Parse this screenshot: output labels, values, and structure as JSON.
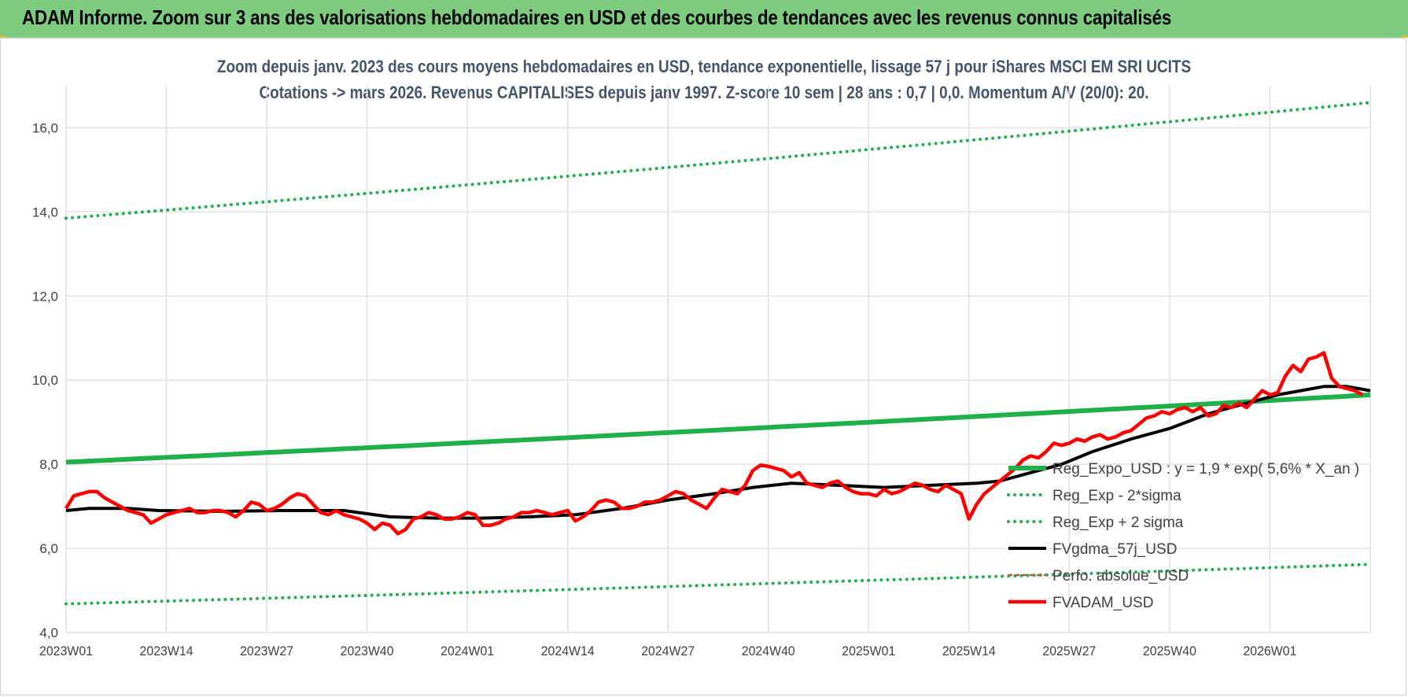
{
  "header": {
    "title": "ADAM Informe. Zoom sur 3 ans des valorisations hebdomadaires en USD et des courbes de tendances avec les revenus connus capitalisés"
  },
  "chart_data": {
    "type": "line",
    "title_line1": "Zoom depuis janv. 2023 des cours moyens hebdomadaires en USD, tendance exponentielle, lissage 57 j pour iShares MSCI EM SRI UCITS",
    "title_line2": "Cotations -> mars 2026. Revenus CAPITALISES depuis janv 1997. Z-score 10 sem | 28 ans : 0,7 | 0,0. Momentum A/V (20/0): 20.",
    "xlabel": "",
    "ylabel": "",
    "ylim": [
      4.0,
      17.0
    ],
    "yticks": [
      4.0,
      6.0,
      8.0,
      10.0,
      12.0,
      14.0,
      16.0
    ],
    "ytick_labels": [
      "4,0",
      "6,0",
      "8,0",
      "10,0",
      "12,0",
      "14,0",
      "16,0"
    ],
    "xlim": [
      0,
      169
    ],
    "xticks": [
      0,
      13,
      26,
      39,
      52,
      65,
      78,
      91,
      104,
      117,
      130,
      143,
      156
    ],
    "xtick_labels": [
      "2023W01",
      "2023W14",
      "2023W27",
      "2023W40",
      "2024W01",
      "2024W14",
      "2024W27",
      "2024W40",
      "2025W01",
      "2025W14",
      "2025W27",
      "2025W40",
      "2026W01"
    ],
    "grid": true,
    "legend_position": "bottom-right",
    "colors": {
      "green": "#1fb04a",
      "black": "#000000",
      "red": "#ff0000",
      "grid": "#e0e0e0",
      "text": "#404040"
    },
    "series": [
      {
        "name": "Reg_Expo_USD : y = 1,9 * exp( 5,6% *  X_an )",
        "style": "solid-thick",
        "color": "#1fb04a",
        "points": [
          [
            0,
            8.05
          ],
          [
            169,
            9.65
          ]
        ]
      },
      {
        "name": "Reg_Exp - 2*sigma",
        "style": "dotted",
        "color": "#1fb04a",
        "points": [
          [
            0,
            4.68
          ],
          [
            169,
            5.62
          ]
        ]
      },
      {
        "name": "Reg_Exp + 2 sigma",
        "style": "dotted",
        "color": "#1fb04a",
        "points": [
          [
            0,
            13.85
          ],
          [
            169,
            16.6
          ]
        ]
      },
      {
        "name": "FVgdma_57j_USD",
        "style": "solid",
        "color": "#000000",
        "points": [
          [
            0,
            6.9
          ],
          [
            3,
            6.95
          ],
          [
            8,
            6.95
          ],
          [
            12,
            6.9
          ],
          [
            20,
            6.88
          ],
          [
            28,
            6.9
          ],
          [
            36,
            6.9
          ],
          [
            42,
            6.75
          ],
          [
            48,
            6.72
          ],
          [
            54,
            6.72
          ],
          [
            60,
            6.75
          ],
          [
            66,
            6.8
          ],
          [
            72,
            6.95
          ],
          [
            78,
            7.15
          ],
          [
            84,
            7.3
          ],
          [
            89,
            7.45
          ],
          [
            94,
            7.55
          ],
          [
            100,
            7.5
          ],
          [
            106,
            7.45
          ],
          [
            112,
            7.5
          ],
          [
            118,
            7.55
          ],
          [
            121,
            7.6
          ],
          [
            125,
            7.8
          ],
          [
            129,
            8.0
          ],
          [
            133,
            8.3
          ],
          [
            138,
            8.6
          ],
          [
            143,
            8.85
          ],
          [
            148,
            9.2
          ],
          [
            153,
            9.45
          ],
          [
            157,
            9.65
          ],
          [
            160,
            9.75
          ],
          [
            163,
            9.85
          ],
          [
            166,
            9.85
          ],
          [
            169,
            9.75
          ]
        ]
      },
      {
        "name": "Perfo. absolue_USD",
        "style": "dashed",
        "color": "#c0504d",
        "points": []
      },
      {
        "name": "FVADAM_USD",
        "style": "solid-thick",
        "color": "#ff0000",
        "points": [
          [
            0,
            6.95
          ],
          [
            1,
            7.25
          ],
          [
            2,
            7.3
          ],
          [
            3,
            7.35
          ],
          [
            4,
            7.35
          ],
          [
            5,
            7.2
          ],
          [
            6,
            7.1
          ],
          [
            7,
            7.0
          ],
          [
            8,
            6.9
          ],
          [
            9,
            6.85
          ],
          [
            10,
            6.8
          ],
          [
            11,
            6.6
          ],
          [
            12,
            6.7
          ],
          [
            13,
            6.8
          ],
          [
            14,
            6.85
          ],
          [
            15,
            6.9
          ],
          [
            16,
            6.95
          ],
          [
            17,
            6.85
          ],
          [
            18,
            6.85
          ],
          [
            19,
            6.9
          ],
          [
            20,
            6.9
          ],
          [
            21,
            6.85
          ],
          [
            22,
            6.75
          ],
          [
            23,
            6.9
          ],
          [
            24,
            7.1
          ],
          [
            25,
            7.05
          ],
          [
            26,
            6.9
          ],
          [
            27,
            6.95
          ],
          [
            28,
            7.05
          ],
          [
            29,
            7.2
          ],
          [
            30,
            7.3
          ],
          [
            31,
            7.25
          ],
          [
            32,
            7.05
          ],
          [
            33,
            6.85
          ],
          [
            34,
            6.8
          ],
          [
            35,
            6.9
          ],
          [
            36,
            6.8
          ],
          [
            37,
            6.75
          ],
          [
            38,
            6.7
          ],
          [
            39,
            6.6
          ],
          [
            40,
            6.45
          ],
          [
            41,
            6.6
          ],
          [
            42,
            6.55
          ],
          [
            43,
            6.35
          ],
          [
            44,
            6.45
          ],
          [
            45,
            6.7
          ],
          [
            46,
            6.75
          ],
          [
            47,
            6.85
          ],
          [
            48,
            6.8
          ],
          [
            49,
            6.7
          ],
          [
            50,
            6.7
          ],
          [
            51,
            6.75
          ],
          [
            52,
            6.85
          ],
          [
            53,
            6.8
          ],
          [
            54,
            6.55
          ],
          [
            55,
            6.55
          ],
          [
            56,
            6.6
          ],
          [
            57,
            6.7
          ],
          [
            58,
            6.75
          ],
          [
            59,
            6.85
          ],
          [
            60,
            6.85
          ],
          [
            61,
            6.9
          ],
          [
            62,
            6.85
          ],
          [
            63,
            6.8
          ],
          [
            64,
            6.85
          ],
          [
            65,
            6.9
          ],
          [
            66,
            6.65
          ],
          [
            67,
            6.75
          ],
          [
            68,
            6.9
          ],
          [
            69,
            7.1
          ],
          [
            70,
            7.15
          ],
          [
            71,
            7.1
          ],
          [
            72,
            6.95
          ],
          [
            73,
            6.95
          ],
          [
            74,
            7.0
          ],
          [
            75,
            7.1
          ],
          [
            76,
            7.1
          ],
          [
            77,
            7.15
          ],
          [
            78,
            7.25
          ],
          [
            79,
            7.35
          ],
          [
            80,
            7.3
          ],
          [
            81,
            7.15
          ],
          [
            82,
            7.05
          ],
          [
            83,
            6.95
          ],
          [
            84,
            7.2
          ],
          [
            85,
            7.4
          ],
          [
            86,
            7.35
          ],
          [
            87,
            7.3
          ],
          [
            88,
            7.5
          ],
          [
            89,
            7.85
          ],
          [
            90,
            7.98
          ],
          [
            91,
            7.95
          ],
          [
            92,
            7.9
          ],
          [
            93,
            7.85
          ],
          [
            94,
            7.7
          ],
          [
            95,
            7.8
          ],
          [
            96,
            7.55
          ],
          [
            97,
            7.5
          ],
          [
            98,
            7.45
          ],
          [
            99,
            7.55
          ],
          [
            100,
            7.6
          ],
          [
            101,
            7.45
          ],
          [
            102,
            7.35
          ],
          [
            103,
            7.3
          ],
          [
            104,
            7.3
          ],
          [
            105,
            7.25
          ],
          [
            106,
            7.4
          ],
          [
            107,
            7.3
          ],
          [
            108,
            7.35
          ],
          [
            109,
            7.45
          ],
          [
            110,
            7.55
          ],
          [
            111,
            7.5
          ],
          [
            112,
            7.4
          ],
          [
            113,
            7.35
          ],
          [
            114,
            7.5
          ],
          [
            115,
            7.4
          ],
          [
            116,
            7.3
          ],
          [
            117,
            6.7
          ],
          [
            118,
            7.05
          ],
          [
            119,
            7.3
          ],
          [
            120,
            7.45
          ],
          [
            121,
            7.6
          ],
          [
            122,
            7.75
          ],
          [
            123,
            7.9
          ],
          [
            124,
            8.1
          ],
          [
            125,
            8.2
          ],
          [
            126,
            8.15
          ],
          [
            127,
            8.3
          ],
          [
            128,
            8.5
          ],
          [
            129,
            8.45
          ],
          [
            130,
            8.5
          ],
          [
            131,
            8.6
          ],
          [
            132,
            8.55
          ],
          [
            133,
            8.65
          ],
          [
            134,
            8.7
          ],
          [
            135,
            8.6
          ],
          [
            136,
            8.65
          ],
          [
            137,
            8.75
          ],
          [
            138,
            8.8
          ],
          [
            139,
            8.95
          ],
          [
            140,
            9.1
          ],
          [
            141,
            9.15
          ],
          [
            142,
            9.25
          ],
          [
            143,
            9.2
          ],
          [
            144,
            9.3
          ],
          [
            145,
            9.35
          ],
          [
            146,
            9.25
          ],
          [
            147,
            9.35
          ],
          [
            148,
            9.15
          ],
          [
            149,
            9.2
          ],
          [
            150,
            9.4
          ],
          [
            151,
            9.35
          ],
          [
            152,
            9.45
          ],
          [
            153,
            9.35
          ],
          [
            154,
            9.55
          ],
          [
            155,
            9.75
          ],
          [
            156,
            9.65
          ],
          [
            157,
            9.7
          ],
          [
            158,
            10.1
          ],
          [
            159,
            10.35
          ],
          [
            160,
            10.2
          ],
          [
            161,
            10.5
          ],
          [
            162,
            10.55
          ],
          [
            163,
            10.65
          ],
          [
            164,
            10.05
          ],
          [
            165,
            9.85
          ],
          [
            166,
            9.8
          ],
          [
            167,
            9.75
          ],
          [
            168,
            9.65
          ]
        ]
      }
    ]
  }
}
